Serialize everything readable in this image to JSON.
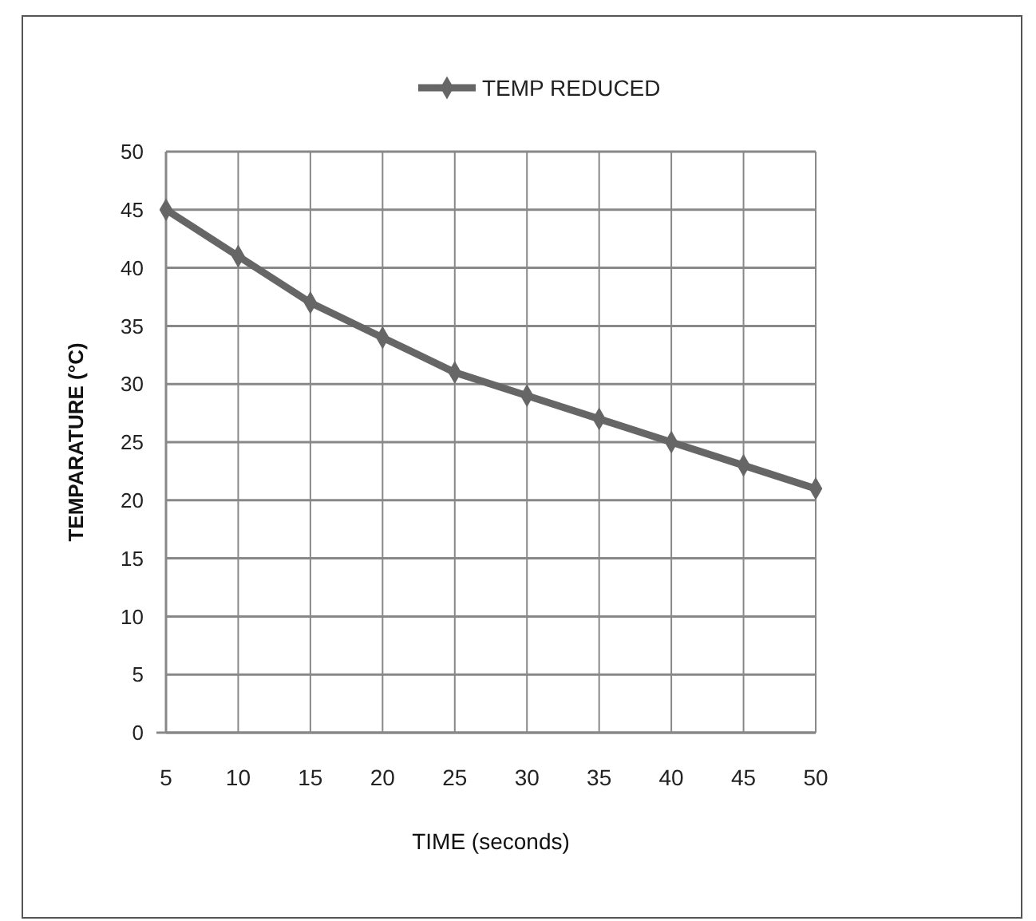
{
  "chart_data": {
    "type": "line",
    "xlabel": "TIME (seconds)",
    "ylabel": "TEMPARATURE  (°C)",
    "categories": [
      "5",
      "10",
      "15",
      "20",
      "25",
      "30",
      "35",
      "40",
      "45",
      "50"
    ],
    "series": [
      {
        "name": "TEMP REDUCED",
        "color": "#666666",
        "values": [
          45,
          41,
          37,
          34,
          31,
          29,
          27,
          25,
          23,
          21
        ]
      }
    ],
    "ylim": [
      0,
      50
    ],
    "yticks": [
      0,
      5,
      10,
      15,
      20,
      25,
      30,
      35,
      40,
      45,
      50
    ],
    "grid": true,
    "legend": "top",
    "marker": "diamond",
    "line_style": "solid"
  }
}
